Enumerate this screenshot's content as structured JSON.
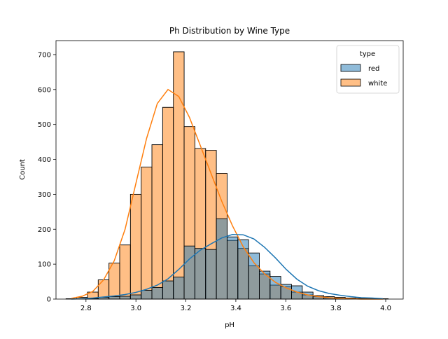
{
  "chart_data": {
    "type": "bar",
    "title": "Ph Distribution by Wine Type",
    "xlabel": "pH",
    "ylabel": "Count",
    "xlim": [
      2.68,
      4.07
    ],
    "ylim": [
      0,
      740
    ],
    "xticks": [
      2.8,
      3.0,
      3.2,
      3.4,
      3.6,
      3.8,
      4.0
    ],
    "xtick_labels": [
      "2.8",
      "3.0",
      "3.2",
      "3.4",
      "3.6",
      "3.8",
      "4.0"
    ],
    "yticks": [
      0,
      100,
      200,
      300,
      400,
      500,
      600,
      700
    ],
    "ytick_labels": [
      "0",
      "100",
      "200",
      "300",
      "400",
      "500",
      "600",
      "700"
    ],
    "bin_edges": [
      2.72,
      2.763,
      2.806,
      2.849,
      2.892,
      2.935,
      2.978,
      3.021,
      3.064,
      3.107,
      3.15,
      3.193,
      3.236,
      3.279,
      3.322,
      3.365,
      3.408,
      3.451,
      3.494,
      3.537,
      3.58,
      3.623,
      3.666,
      3.709,
      3.752,
      3.795,
      3.838,
      3.881,
      3.924,
      3.967,
      4.01
    ],
    "legend": {
      "title": "type",
      "position": "top-right"
    },
    "series": [
      {
        "name": "red",
        "color": "#1f77b4",
        "values": [
          0,
          1,
          2,
          5,
          7,
          8,
          12,
          25,
          33,
          52,
          63,
          152,
          145,
          142,
          230,
          178,
          170,
          132,
          80,
          65,
          42,
          38,
          20,
          10,
          7,
          5,
          3,
          2,
          1,
          1
        ],
        "kde": [
          0,
          1,
          3,
          6,
          9,
          13,
          19,
          28,
          40,
          58,
          85,
          115,
          140,
          158,
          175,
          185,
          184,
          172,
          148,
          118,
          85,
          57,
          37,
          24,
          16,
          11,
          7,
          4,
          3,
          1
        ]
      },
      {
        "name": "white",
        "color": "#ff7f0e",
        "values": [
          1,
          5,
          20,
          55,
          103,
          155,
          300,
          378,
          442,
          549,
          708,
          494,
          431,
          426,
          360,
          168,
          145,
          95,
          72,
          40,
          35,
          20,
          12,
          7,
          3,
          2,
          1,
          0,
          0,
          0
        ],
        "kde": [
          2,
          8,
          22,
          55,
          110,
          200,
          330,
          460,
          560,
          600,
          580,
          520,
          440,
          360,
          280,
          210,
          150,
          104,
          72,
          48,
          32,
          20,
          12,
          7,
          4,
          2,
          1,
          0,
          0,
          0
        ]
      }
    ]
  }
}
